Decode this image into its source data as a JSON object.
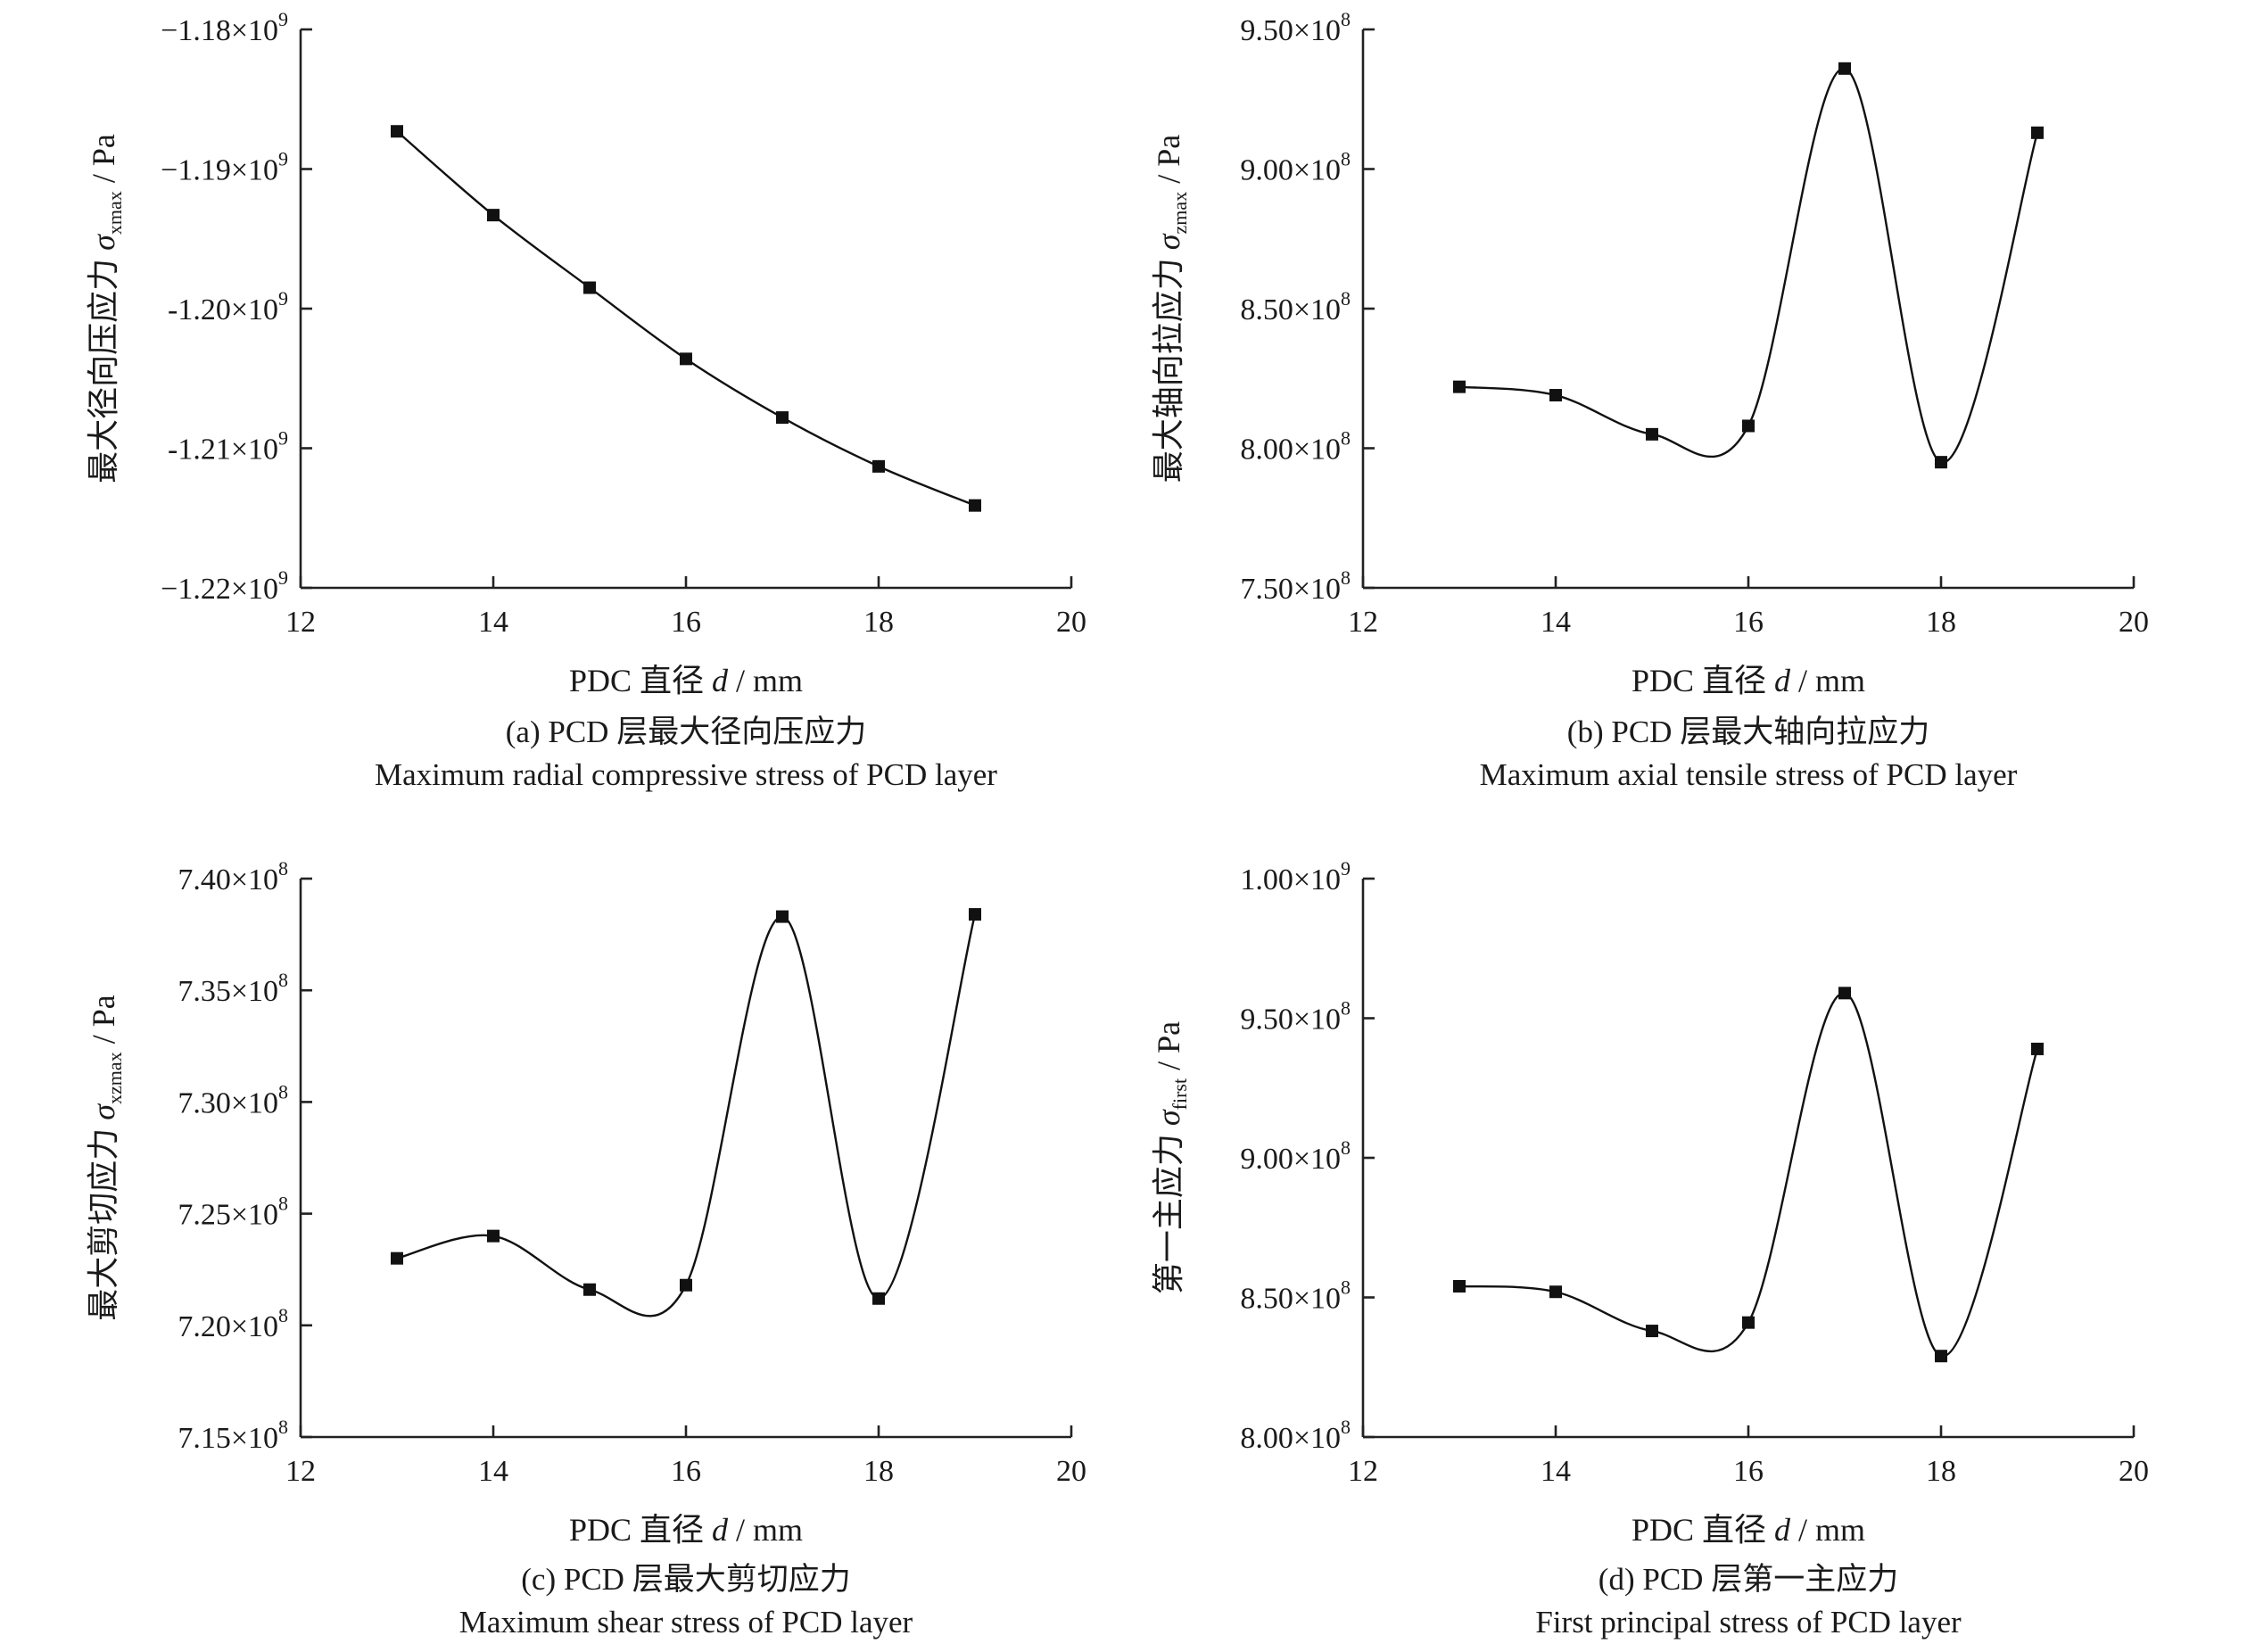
{
  "chart_data": [
    {
      "id": "a",
      "type": "line",
      "x": [
        13,
        14,
        15,
        16,
        17,
        18,
        19
      ],
      "y": [
        -1187300000.0,
        -1193300000.0,
        -1198500000.0,
        -1203600000.0,
        -1207800000.0,
        -1211300000.0,
        -1214100000.0
      ],
      "xlim": [
        12,
        20
      ],
      "ylim": [
        -1220000000.0,
        -1180000000.0
      ],
      "xticks": [
        12,
        14,
        16,
        18,
        20
      ],
      "yticks": [
        {
          "value": -1180000000.0,
          "mant": "−1.18×10",
          "exp": "9"
        },
        {
          "value": -1190000000.0,
          "mant": "−1.19×10",
          "exp": "9"
        },
        {
          "value": -1200000000.0,
          "mant": "-1.20×10",
          "exp": "9"
        },
        {
          "value": -1210000000.0,
          "mant": "-1.21×10",
          "exp": "9"
        },
        {
          "value": -1220000000.0,
          "mant": "−1.22×10",
          "exp": "9"
        }
      ],
      "xlabel": {
        "pre": "PDC 直径 ",
        "var": "d",
        "post": " / mm"
      },
      "ylabel": {
        "pre": "最大径向压应力 ",
        "sym": "σ",
        "sub": "xmax",
        "post": " / Pa"
      },
      "caption_cn": "(a) PCD 层最大径向压应力",
      "caption_en": "Maximum radial compressive stress of PCD layer",
      "grid": false,
      "marker": "square"
    },
    {
      "id": "b",
      "type": "line",
      "x": [
        13,
        14,
        15,
        16,
        17,
        18,
        19
      ],
      "y": [
        822000000.0,
        819000000.0,
        805000000.0,
        808000000.0,
        936000000.0,
        795000000.0,
        913000000.0
      ],
      "xlim": [
        12,
        20
      ],
      "ylim": [
        750000000.0,
        950000000.0
      ],
      "xticks": [
        12,
        14,
        16,
        18,
        20
      ],
      "yticks": [
        {
          "value": 950000000.0,
          "mant": "9.50×10",
          "exp": "8"
        },
        {
          "value": 900000000.0,
          "mant": "9.00×10",
          "exp": "8"
        },
        {
          "value": 850000000.0,
          "mant": "8.50×10",
          "exp": "8"
        },
        {
          "value": 800000000.0,
          "mant": "8.00×10",
          "exp": "8"
        },
        {
          "value": 750000000.0,
          "mant": "7.50×10",
          "exp": "8"
        }
      ],
      "xlabel": {
        "pre": "PDC 直径 ",
        "var": "d",
        "post": " / mm"
      },
      "ylabel": {
        "pre": "最大轴向拉应力 ",
        "sym": "σ",
        "sub": "zmax",
        "post": " / Pa"
      },
      "caption_cn": "(b) PCD 层最大轴向拉应力",
      "caption_en": "Maximum axial tensile stress of PCD layer",
      "grid": false,
      "marker": "square"
    },
    {
      "id": "c",
      "type": "line",
      "x": [
        13,
        14,
        15,
        16,
        17,
        18,
        19
      ],
      "y": [
        723000000.0,
        724000000.0,
        721600000.0,
        721800000.0,
        738300000.0,
        721200000.0,
        738400000.0
      ],
      "xlim": [
        12,
        20
      ],
      "ylim": [
        715000000.0,
        740000000.0
      ],
      "xticks": [
        12,
        14,
        16,
        18,
        20
      ],
      "yticks": [
        {
          "value": 740000000.0,
          "mant": "7.40×10",
          "exp": "8"
        },
        {
          "value": 735000000.0,
          "mant": "7.35×10",
          "exp": "8"
        },
        {
          "value": 730000000.0,
          "mant": "7.30×10",
          "exp": "8"
        },
        {
          "value": 725000000.0,
          "mant": "7.25×10",
          "exp": "8"
        },
        {
          "value": 720000000.0,
          "mant": "7.20×10",
          "exp": "8"
        },
        {
          "value": 715000000.0,
          "mant": "7.15×10",
          "exp": "8"
        }
      ],
      "xlabel": {
        "pre": "PDC 直径 ",
        "var": "d",
        "post": " / mm"
      },
      "ylabel": {
        "pre": "最大剪切应力 ",
        "sym": "σ",
        "sub": "xzmax",
        "post": " / Pa"
      },
      "caption_cn": "(c) PCD 层最大剪切应力",
      "caption_en": "Maximum shear stress of PCD layer",
      "grid": false,
      "marker": "square"
    },
    {
      "id": "d",
      "type": "line",
      "x": [
        13,
        14,
        15,
        16,
        17,
        18,
        19
      ],
      "y": [
        854000000.0,
        852000000.0,
        838000000.0,
        841000000.0,
        959000000.0,
        829000000.0,
        939000000.0
      ],
      "xlim": [
        12,
        20
      ],
      "ylim": [
        800000000.0,
        1000000000.0
      ],
      "xticks": [
        12,
        14,
        16,
        18,
        20
      ],
      "yticks": [
        {
          "value": 1000000000.0,
          "mant": "1.00×10",
          "exp": "9"
        },
        {
          "value": 950000000.0,
          "mant": "9.50×10",
          "exp": "8"
        },
        {
          "value": 900000000.0,
          "mant": "9.00×10",
          "exp": "8"
        },
        {
          "value": 850000000.0,
          "mant": "8.50×10",
          "exp": "8"
        },
        {
          "value": 800000000.0,
          "mant": "8.00×10",
          "exp": "8"
        }
      ],
      "xlabel": {
        "pre": "PDC 直径 ",
        "var": "d",
        "post": " / mm"
      },
      "ylabel": {
        "pre": "第一主应力 ",
        "sym": "σ",
        "sub": "first",
        "post": " / Pa"
      },
      "caption_cn": "(d) PCD 层第一主应力",
      "caption_en": "First principal stress of PCD layer",
      "grid": false,
      "marker": "square"
    }
  ]
}
